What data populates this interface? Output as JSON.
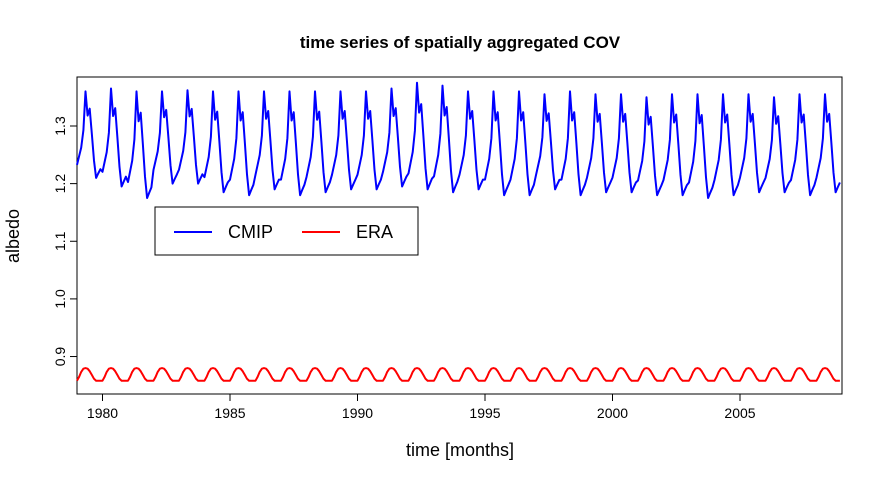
{
  "chart_data": {
    "type": "line",
    "title": "time series of spatially aggregated COV",
    "xlabel": "time [months]",
    "ylabel": "albedo",
    "xlim": [
      1979.0,
      2009.0
    ],
    "ylim": [
      0.835,
      1.385
    ],
    "x_ticks": [
      1980,
      1985,
      1990,
      1995,
      2000,
      2005
    ],
    "y_ticks": [
      0.9,
      1.0,
      1.1,
      1.2,
      1.3
    ],
    "y_tick_labels": [
      "0.9",
      "1.0",
      "1.1",
      "1.2",
      "1.3"
    ],
    "x_start": 1979.0,
    "x_step": 0.0833333,
    "legend": {
      "placement": "upper-left"
    },
    "series": [
      {
        "name": "CMIP",
        "color": "#0000ff",
        "yearly_peaks": [
          1.36,
          1.365,
          1.36,
          1.36,
          1.362,
          1.36,
          1.36,
          1.36,
          1.36,
          1.36,
          1.36,
          1.36,
          1.365,
          1.375,
          1.37,
          1.36,
          1.36,
          1.36,
          1.355,
          1.36,
          1.355,
          1.355,
          1.35,
          1.355,
          1.355,
          1.355,
          1.355,
          1.35,
          1.355,
          1.355
        ],
        "yearly_troughs": [
          1.21,
          1.195,
          1.175,
          1.2,
          1.2,
          1.185,
          1.18,
          1.19,
          1.18,
          1.185,
          1.19,
          1.19,
          1.195,
          1.19,
          1.185,
          1.19,
          1.18,
          1.18,
          1.19,
          1.18,
          1.185,
          1.185,
          1.18,
          1.18,
          1.175,
          1.18,
          1.185,
          1.185,
          1.18,
          1.185
        ],
        "monthly_profile": [
          0.15,
          0.25,
          0.35,
          0.55,
          1.0,
          0.72,
          0.8,
          0.5,
          0.2,
          0.0,
          0.05,
          0.1
        ]
      },
      {
        "name": "ERA",
        "color": "#ff0000",
        "max": 0.88,
        "min": 0.858,
        "monthly_profile": [
          0.0,
          0.3,
          0.7,
          0.95,
          1.0,
          0.95,
          0.75,
          0.45,
          0.15,
          0.0,
          0.0,
          0.0
        ]
      }
    ]
  }
}
